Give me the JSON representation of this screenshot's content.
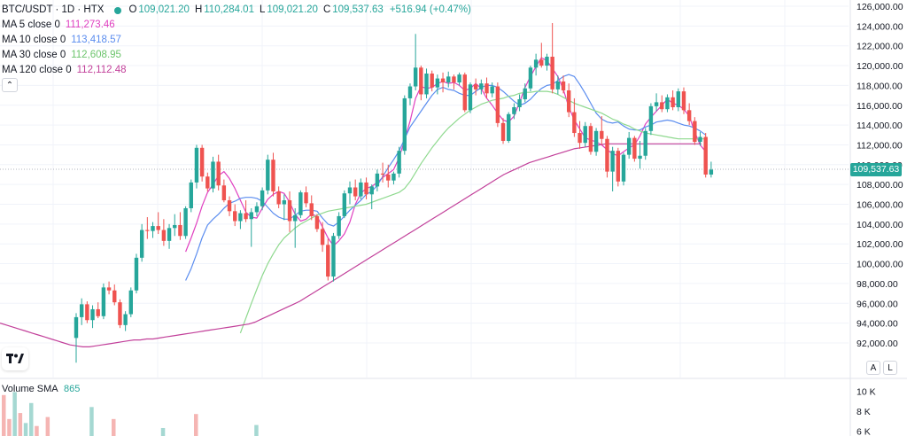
{
  "header": {
    "symbol": "BTC/USDT · 1D · HTX",
    "ohlc": {
      "open_label": "O",
      "open": "109,021.20",
      "high_label": "H",
      "high": "110,284.01",
      "low_label": "L",
      "low": "109,021.20",
      "close_label": "C",
      "close": "109,537.63",
      "change": "+516.94 (+0.47%)"
    }
  },
  "indicators": [
    {
      "label": "MA 5 close 0",
      "value": "111,273.46",
      "color": "#e040c0"
    },
    {
      "label": "MA 10 close 0",
      "value": "113,418.57",
      "color": "#5b8def"
    },
    {
      "label": "MA 30 close 0",
      "value": "112,608.95",
      "color": "#8fd98f"
    },
    {
      "label": "MA 120 close 0",
      "value": "112,112.48",
      "color": "#c2409a"
    }
  ],
  "colors": {
    "up": "#26a69a",
    "down": "#ef5350",
    "grid": "#f0f3fa",
    "axis_text": "#131722",
    "status_dot": "#26a69a"
  },
  "price_axis": {
    "labels": [
      "126,000.00",
      "124,000.00",
      "122,000.00",
      "120,000.00",
      "118,000.00",
      "116,000.00",
      "114,000.00",
      "112,000.00",
      "110,000.00",
      "108,000.00",
      "106,000.00",
      "104,000.00",
      "102,000.00",
      "100,000.00",
      "98,000.00",
      "96,000.00",
      "94,000.00",
      "92,000.00"
    ],
    "current_price": "109,537.63"
  },
  "volume_panel": {
    "label": "Volume SMA",
    "value": "865",
    "axis_labels": [
      "10 K",
      "8 K",
      "6 K"
    ]
  },
  "buttons": {
    "collapse": "⌃",
    "auto_scale": "A",
    "log_scale": "L"
  },
  "chart_data": {
    "type": "candlestick",
    "symbol": "BTC/USDT",
    "interval": "1D",
    "ylim": [
      90000,
      127000
    ],
    "grid": true,
    "candles": [
      [
        92500,
        95000,
        90000,
        94600
      ],
      [
        94600,
        96500,
        93800,
        95900
      ],
      [
        95900,
        96200,
        94000,
        94300
      ],
      [
        94300,
        95800,
        93500,
        95400
      ],
      [
        95400,
        96100,
        94500,
        94700
      ],
      [
        94700,
        98000,
        94400,
        97600
      ],
      [
        97600,
        98200,
        96900,
        97300
      ],
      [
        97300,
        97900,
        95800,
        96100
      ],
      [
        96100,
        96400,
        93500,
        93800
      ],
      [
        93800,
        95200,
        93200,
        94900
      ],
      [
        94900,
        97600,
        94600,
        97300
      ],
      [
        97300,
        101000,
        97000,
        100600
      ],
      [
        100600,
        104000,
        100200,
        103400
      ],
      [
        103400,
        104700,
        102500,
        103300
      ],
      [
        103300,
        104200,
        102600,
        103800
      ],
      [
        103800,
        105200,
        103000,
        103400
      ],
      [
        103400,
        104500,
        101800,
        102300
      ],
      [
        102300,
        104000,
        101500,
        103600
      ],
      [
        103600,
        105000,
        102800,
        103900
      ],
      [
        103900,
        105200,
        102400,
        102800
      ],
      [
        102800,
        105800,
        102500,
        105600
      ],
      [
        105600,
        108500,
        105200,
        108200
      ],
      [
        108200,
        112000,
        107600,
        111700
      ],
      [
        111700,
        112000,
        108300,
        108800
      ],
      [
        108800,
        109200,
        107300,
        107600
      ],
      [
        107600,
        110800,
        107200,
        110300
      ],
      [
        110300,
        111000,
        107400,
        107900
      ],
      [
        107900,
        108500,
        106200,
        106400
      ],
      [
        106400,
        106800,
        104800,
        105300
      ],
      [
        105300,
        106000,
        103800,
        104300
      ],
      [
        104300,
        105400,
        103500,
        105100
      ],
      [
        105100,
        106400,
        104200,
        104500
      ],
      [
        104500,
        105600,
        101700,
        105200
      ],
      [
        105200,
        106200,
        104800,
        105800
      ],
      [
        105800,
        107700,
        105400,
        107400
      ],
      [
        107400,
        111000,
        107000,
        110500
      ],
      [
        110500,
        111200,
        106800,
        107300
      ],
      [
        107300,
        107800,
        105600,
        106000
      ],
      [
        106000,
        107000,
        104400,
        106400
      ],
      [
        106400,
        107300,
        103200,
        104300
      ],
      [
        104300,
        105600,
        101600,
        104900
      ],
      [
        104900,
        107400,
        104600,
        107200
      ],
      [
        107200,
        107800,
        105700,
        106100
      ],
      [
        106100,
        106900,
        104400,
        104800
      ],
      [
        104800,
        105000,
        103200,
        103500
      ],
      [
        103500,
        104200,
        101200,
        101900
      ],
      [
        101900,
        102500,
        98300,
        98700
      ],
      [
        98700,
        103100,
        98200,
        102800
      ],
      [
        102800,
        105200,
        102500,
        104800
      ],
      [
        104800,
        107400,
        104600,
        107100
      ],
      [
        107100,
        108300,
        106000,
        107700
      ],
      [
        107700,
        108500,
        106400,
        106800
      ],
      [
        106800,
        108600,
        106500,
        108200
      ],
      [
        108200,
        108700,
        106500,
        107000
      ],
      [
        107000,
        108000,
        105500,
        107800
      ],
      [
        107800,
        109500,
        107300,
        109100
      ],
      [
        109100,
        110200,
        108200,
        109000
      ],
      [
        109000,
        110000,
        107700,
        108400
      ],
      [
        108400,
        109300,
        108000,
        109100
      ],
      [
        109100,
        111800,
        108700,
        111400
      ],
      [
        111400,
        117000,
        111000,
        116700
      ],
      [
        116700,
        118200,
        116000,
        117900
      ],
      [
        117900,
        123200,
        117500,
        119800
      ],
      [
        119800,
        120000,
        116500,
        117100
      ],
      [
        117100,
        119700,
        116700,
        119200
      ],
      [
        119200,
        119500,
        117400,
        117800
      ],
      [
        117800,
        119100,
        117100,
        118700
      ],
      [
        118700,
        119300,
        117300,
        118300
      ],
      [
        118300,
        119400,
        117800,
        118900
      ],
      [
        118900,
        119100,
        117600,
        118300
      ],
      [
        118300,
        119300,
        118000,
        119100
      ],
      [
        119100,
        119300,
        115300,
        115500
      ],
      [
        115500,
        118300,
        115200,
        118100
      ],
      [
        118100,
        118700,
        117000,
        117600
      ],
      [
        117600,
        118600,
        117100,
        118200
      ],
      [
        118200,
        118800,
        116700,
        117200
      ],
      [
        117200,
        118300,
        116800,
        117900
      ],
      [
        117900,
        118300,
        113800,
        114200
      ],
      [
        114200,
        114700,
        112100,
        112400
      ],
      [
        112400,
        115300,
        112200,
        115100
      ],
      [
        115100,
        116200,
        114600,
        115800
      ],
      [
        115800,
        117100,
        115400,
        116600
      ],
      [
        116600,
        118200,
        116300,
        117700
      ],
      [
        117700,
        120000,
        117400,
        119800
      ],
      [
        119800,
        121200,
        119000,
        120600
      ],
      [
        120600,
        122300,
        119800,
        120000
      ],
      [
        120000,
        121200,
        119500,
        120900
      ],
      [
        120900,
        124300,
        117200,
        117600
      ],
      [
        117600,
        119000,
        117100,
        118400
      ],
      [
        118400,
        119000,
        117200,
        117500
      ],
      [
        117500,
        118200,
        114800,
        115300
      ],
      [
        115300,
        116700,
        112800,
        113200
      ],
      [
        113200,
        114400,
        111600,
        112200
      ],
      [
        112200,
        114300,
        111800,
        113900
      ],
      [
        113900,
        114200,
        111000,
        111300
      ],
      [
        111300,
        113700,
        110900,
        113400
      ],
      [
        113400,
        114900,
        112000,
        112600
      ],
      [
        112600,
        112900,
        108700,
        109300
      ],
      [
        109300,
        111800,
        107300,
        111400
      ],
      [
        111400,
        111700,
        107800,
        108300
      ],
      [
        108300,
        111200,
        107900,
        111000
      ],
      [
        111000,
        113300,
        110600,
        112700
      ],
      [
        112700,
        112900,
        110300,
        110600
      ],
      [
        110600,
        112400,
        109600,
        110900
      ],
      [
        110900,
        113700,
        110500,
        113400
      ],
      [
        113400,
        116200,
        113000,
        115900
      ],
      [
        115900,
        117200,
        115400,
        116300
      ],
      [
        116300,
        117000,
        115300,
        115600
      ],
      [
        115600,
        117100,
        115300,
        116800
      ],
      [
        116800,
        117500,
        115500,
        115800
      ],
      [
        115800,
        117700,
        115400,
        117400
      ],
      [
        117400,
        117800,
        115100,
        115500
      ],
      [
        115500,
        116200,
        114000,
        114400
      ],
      [
        114400,
        114800,
        112000,
        112300
      ],
      [
        112300,
        113300,
        111900,
        112800
      ],
      [
        112800,
        113200,
        108700,
        109000
      ],
      [
        109000,
        110300,
        108700,
        109500
      ]
    ],
    "ma": {
      "MA 5": {
        "start": 20,
        "values": [
          101200,
          102600,
          104100,
          105800,
          107200,
          108000,
          108900,
          109300,
          108600,
          107600,
          106400,
          105200,
          104700,
          104600,
          105600,
          106500,
          107000,
          107300,
          107100,
          106200,
          105000,
          104300,
          104500,
          105000,
          104800,
          103700,
          102600,
          101800,
          102300,
          103000,
          104200,
          106000,
          107100,
          107600,
          107800,
          108200,
          108700,
          109100,
          109500,
          110700,
          112500,
          114400,
          116700,
          117900,
          117700,
          117800,
          118200,
          118400,
          118200,
          118300,
          118000,
          117500,
          117700,
          118200,
          117700,
          116700,
          116000,
          115200,
          114500,
          114300,
          114900,
          116300,
          117800,
          118900,
          119900,
          120800,
          120500,
          119700,
          118900,
          117600,
          115800,
          114500,
          113600,
          112700,
          112500,
          112300,
          112000,
          111500,
          111100,
          110900,
          111300,
          111700,
          112000,
          112900,
          114100,
          114800,
          115400,
          116000,
          116600,
          116200,
          116000,
          115600,
          114900,
          113300,
          112000,
          111300
        ]
      },
      "MA 10": {
        "start": 20,
        "values": [
          98300,
          99500,
          101000,
          102600,
          103900,
          104500,
          105000,
          105600,
          106100,
          106300,
          106600,
          106700,
          106700,
          106600,
          106300,
          105700,
          105100,
          104700,
          104500,
          104500,
          104900,
          105300,
          105400,
          105400,
          105300,
          104600,
          104000,
          103800,
          104200,
          104800,
          105400,
          105900,
          106400,
          107000,
          107300,
          107900,
          108800,
          109700,
          110500,
          111400,
          112600,
          113800,
          114600,
          115400,
          116200,
          117000,
          117600,
          117800,
          117600,
          117500,
          117200,
          117000,
          117000,
          117400,
          117800,
          118000,
          118000,
          117800,
          117400,
          116900,
          116400,
          116000,
          116200,
          116600,
          117200,
          117700,
          118000,
          118100,
          118500,
          118900,
          119100,
          118900,
          118100,
          117200,
          116200,
          115200,
          114600,
          114300,
          114200,
          114300,
          113900,
          113600,
          113500,
          113500,
          113800,
          114000,
          114300,
          114400,
          114500,
          114400,
          114200,
          114000,
          113900,
          113700,
          113400,
          113000
        ]
      },
      "MA 30": {
        "start": 30,
        "values": [
          93000,
          94500,
          96000,
          97400,
          98800,
          100000,
          101000,
          101900,
          102600,
          103100,
          103600,
          104000,
          104300,
          104600,
          104900,
          105100,
          105300,
          105400,
          105500,
          105600,
          105700,
          105800,
          105900,
          106000,
          106200,
          106400,
          106600,
          106800,
          107000,
          107200,
          107600,
          108300,
          109200,
          110100,
          110900,
          111700,
          112400,
          113100,
          113700,
          114200,
          114700,
          115100,
          115500,
          115800,
          116100,
          116300,
          116500,
          116600,
          116700,
          116900,
          117000,
          117200,
          117300,
          117300,
          117400,
          117400,
          117400,
          117300,
          117100,
          116800,
          116500,
          116200,
          116000,
          115800,
          115600,
          115400,
          115200,
          114900,
          114600,
          114400,
          114100,
          113900,
          113600,
          113400,
          113200,
          113100,
          113000,
          112900,
          112800,
          112700,
          112600,
          112600,
          112600,
          112600,
          112600,
          112600
        ]
      },
      "MA 120": {
        "start": 0,
        "values": [
          94000,
          93800,
          93600,
          93400,
          93200,
          93000,
          92800,
          92600,
          92400,
          92200,
          92000,
          91800,
          91700,
          91600,
          91600,
          91700,
          91800,
          91900,
          92000,
          92100,
          92200,
          92300,
          92300,
          92400,
          92400,
          92500,
          92600,
          92700,
          92800,
          92900,
          93000,
          93100,
          93200,
          93300,
          93400,
          93500,
          93600,
          93700,
          93800,
          93900,
          94100,
          94400,
          94700,
          95000,
          95300,
          95600,
          95900,
          96200,
          96600,
          97000,
          97400,
          97800,
          98200,
          98600,
          99000,
          99400,
          99800,
          100200,
          100600,
          101000,
          101400,
          101800,
          102200,
          102600,
          103000,
          103400,
          103800,
          104200,
          104600,
          105000,
          105400,
          105800,
          106200,
          106600,
          107000,
          107400,
          107800,
          108200,
          108600,
          109000,
          109300,
          109600,
          109900,
          110200,
          110400,
          110600,
          110800,
          111000,
          111200,
          111400,
          111600,
          111700,
          111800,
          111900,
          112000,
          112100,
          112100,
          112100,
          112100,
          112100,
          112100,
          112100,
          112100,
          112100,
          112100,
          112100,
          112100,
          112100,
          112100,
          112100,
          112100
        ]
      }
    },
    "volume": [
      {
        "x": 0,
        "v": 9600,
        "up": false
      },
      {
        "x": 1,
        "v": 7200,
        "up": false
      },
      {
        "x": 2,
        "v": 9900,
        "up": true
      },
      {
        "x": 3,
        "v": 7800,
        "up": false
      },
      {
        "x": 4,
        "v": 6800,
        "up": true
      },
      {
        "x": 5,
        "v": 8800,
        "up": true
      },
      {
        "x": 6,
        "v": 6500,
        "up": false
      },
      {
        "x": 8,
        "v": 7400,
        "up": false
      },
      {
        "x": 16,
        "v": 8400,
        "up": true
      },
      {
        "x": 20,
        "v": 7200,
        "up": false
      },
      {
        "x": 29,
        "v": 6300,
        "up": true
      },
      {
        "x": 35,
        "v": 7700,
        "up": false
      },
      {
        "x": 46,
        "v": 6600,
        "up": true
      }
    ],
    "volume_ylim": [
      5500,
      11000
    ]
  }
}
